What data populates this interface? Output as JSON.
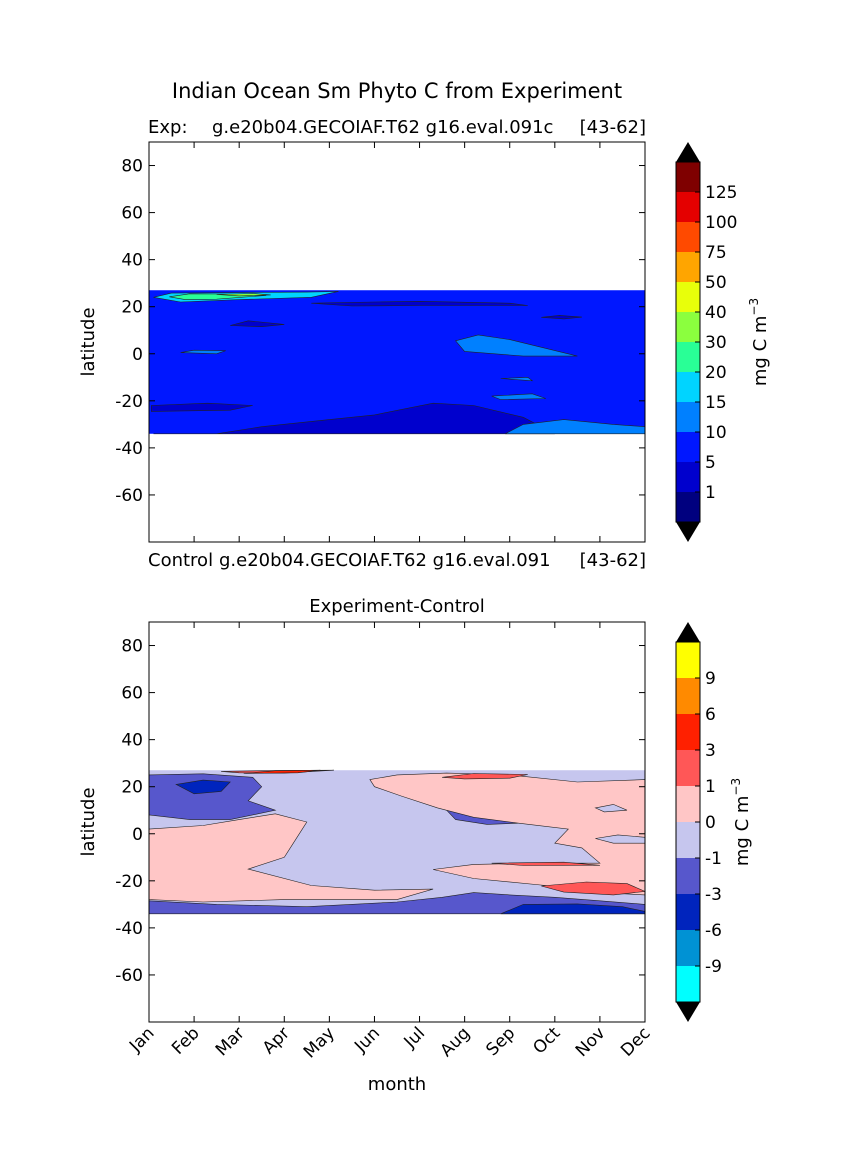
{
  "figure": {
    "title": "Indian Ocean Sm Phyto C from Experiment",
    "exp_label": "Exp:",
    "exp_run": "g.e20b04.GECOIAF.T62 g16.eval.091c",
    "exp_years": "[43-62]",
    "control_label": "Control",
    "control_run": "g.e20b04.GECOIAF.T62 g16.eval.091",
    "control_years": "[43-62]",
    "diff_title": "Experiment-Control",
    "ylabel": "latitude",
    "xlabel": "month",
    "colorbar_units": "mg C m",
    "colorbar_units_sup": "−3"
  },
  "chart_data": [
    {
      "type": "heatmap",
      "name": "experiment",
      "title": "Indian Ocean Sm Phyto C from Experiment",
      "ylabel": "latitude",
      "ylim": [
        -80,
        90
      ],
      "yticks": [
        80,
        60,
        40,
        20,
        0,
        -20,
        -40,
        -60
      ],
      "data_lat_range": [
        -34,
        27
      ],
      "colorbar": {
        "units": "mg C m^-3",
        "levels": [
          1,
          5,
          10,
          15,
          20,
          30,
          40,
          50,
          75,
          100,
          125
        ],
        "colors": [
          "#00007f",
          "#0000cd",
          "#0017ff",
          "#0080ff",
          "#00d4ff",
          "#29ff96",
          "#8bff3e",
          "#e8ff0a",
          "#ffa500",
          "#ff4a00",
          "#e40000",
          "#7f0000"
        ],
        "extend": "both"
      },
      "background_level_index": 2,
      "regions": [
        {
          "level_index": 1,
          "points": [
            [
              0.1,
              -34
            ],
            [
              1.5,
              -34
            ],
            [
              2.5,
              -31
            ],
            [
              4,
              -28
            ],
            [
              5,
              -26
            ],
            [
              6.3,
              -21
            ],
            [
              7.2,
              -22
            ],
            [
              8.3,
              -27
            ],
            [
              9,
              -34
            ]
          ]
        },
        {
          "level_index": 1,
          "points": [
            [
              0.05,
              -22
            ],
            [
              1.3,
              -21
            ],
            [
              2.3,
              -22
            ],
            [
              1.8,
              -24
            ],
            [
              0.05,
              -24.5
            ]
          ]
        },
        {
          "level_index": 1,
          "points": [
            [
              1.8,
              12
            ],
            [
              2.5,
              11.5
            ],
            [
              3,
              12.5
            ],
            [
              2.2,
              14
            ]
          ]
        },
        {
          "level_index": 1,
          "points": [
            [
              3.6,
              21.5
            ],
            [
              5,
              22
            ],
            [
              6,
              22.3
            ],
            [
              8,
              21.5
            ],
            [
              8.4,
              20.5
            ],
            [
              6,
              20.5
            ],
            [
              4.5,
              20.3
            ]
          ]
        },
        {
          "level_index": 1,
          "points": [
            [
              8.7,
              15.5
            ],
            [
              9.2,
              14.8
            ],
            [
              9.6,
              15.6
            ],
            [
              9.1,
              16.3
            ]
          ]
        },
        {
          "level_index": 3,
          "points": [
            [
              0.7,
              0.5
            ],
            [
              1,
              1.5
            ],
            [
              1.7,
              1.3
            ],
            [
              1.5,
              0
            ]
          ]
        },
        {
          "level_index": 3,
          "points": [
            [
              6.8,
              5.5
            ],
            [
              7.3,
              8
            ],
            [
              8,
              6
            ],
            [
              9.5,
              -1
            ],
            [
              8.3,
              -1
            ],
            [
              7,
              1
            ]
          ]
        },
        {
          "level_index": 3,
          "points": [
            [
              7.6,
              -18
            ],
            [
              8.5,
              -17
            ],
            [
              8.8,
              -19
            ],
            [
              7.8,
              -19.5
            ]
          ]
        },
        {
          "level_index": 3,
          "points": [
            [
              7.8,
              -10.5
            ],
            [
              8.4,
              -10
            ],
            [
              8.5,
              -11.5
            ]
          ]
        },
        {
          "level_index": 3,
          "points": [
            [
              7.9,
              -34
            ],
            [
              8.3,
              -30
            ],
            [
              9.2,
              -28
            ],
            [
              10.3,
              -30
            ],
            [
              11,
              -31
            ],
            [
              11,
              -34
            ]
          ]
        },
        {
          "level_index": 4,
          "points": [
            [
              0.1,
              24
            ],
            [
              0.5,
              25.8
            ],
            [
              2,
              26
            ],
            [
              3.5,
              26.2
            ],
            [
              4.2,
              26.5
            ],
            [
              3.6,
              24
            ],
            [
              2,
              23
            ],
            [
              0.7,
              22
            ]
          ]
        },
        {
          "level_index": 5,
          "points": [
            [
              0.45,
              24.2
            ],
            [
              0.9,
              25.5
            ],
            [
              1.8,
              25.4
            ],
            [
              2.6,
              24.8
            ],
            [
              1.5,
              23.2
            ],
            [
              0.8,
              23
            ]
          ]
        },
        {
          "level_index": 6,
          "points": [
            [
              1.5,
              25.2
            ],
            [
              2.3,
              25.6
            ],
            [
              2.7,
              25
            ],
            [
              2,
              24.6
            ]
          ]
        }
      ]
    },
    {
      "type": "heatmap",
      "name": "experiment-control",
      "title": "Experiment-Control",
      "ylabel": "latitude",
      "xlabel": "month",
      "ylim": [
        -80,
        90
      ],
      "yticks": [
        80,
        60,
        40,
        20,
        0,
        -20,
        -40,
        -60
      ],
      "categories": [
        "Jan",
        "Feb",
        "Mar",
        "Apr",
        "May",
        "Jun",
        "Jul",
        "Aug",
        "Sep",
        "Oct",
        "Nov",
        "Dec"
      ],
      "data_lat_range": [
        -34,
        27
      ],
      "colorbar": {
        "units": "mg C m^-3",
        "levels": [
          -9,
          -6,
          -3,
          -1,
          0,
          1,
          3,
          6,
          9
        ],
        "colors": [
          "#00ffff",
          "#0092d4",
          "#0024bd",
          "#5757cc",
          "#c6c6ee",
          "#ffc6c6",
          "#ff5757",
          "#ff2000",
          "#ff8a00",
          "#ffff00"
        ],
        "extend": "both"
      },
      "background_level_index": 4,
      "regions": [
        {
          "level_index": 3,
          "points": [
            [
              0,
              25
            ],
            [
              1.2,
              25.5
            ],
            [
              2.3,
              24
            ],
            [
              2.5,
              20
            ],
            [
              2.2,
              14
            ],
            [
              2.8,
              10
            ],
            [
              1.8,
              6
            ],
            [
              0.9,
              6
            ],
            [
              0,
              8
            ]
          ]
        },
        {
          "level_index": 2,
          "points": [
            [
              0.6,
              21
            ],
            [
              1.2,
              22.8
            ],
            [
              1.8,
              22
            ],
            [
              1.6,
              18
            ],
            [
              1,
              17
            ]
          ]
        },
        {
          "level_index": 3,
          "points": [
            [
              6.6,
              10
            ],
            [
              7.5,
              11
            ],
            [
              8.3,
              10.5
            ],
            [
              8.2,
              4.5
            ],
            [
              7.5,
              4
            ],
            [
              6.8,
              6
            ]
          ]
        },
        {
          "level_index": 3,
          "points": [
            [
              0,
              -28.5
            ],
            [
              1.5,
              -30
            ],
            [
              3.5,
              -31
            ],
            [
              5.5,
              -29
            ],
            [
              6.5,
              -27
            ],
            [
              7.2,
              -25
            ],
            [
              8,
              -26
            ],
            [
              9,
              -27
            ],
            [
              10,
              -28.5
            ],
            [
              11,
              -30
            ],
            [
              11,
              -34
            ],
            [
              0,
              -34
            ]
          ]
        },
        {
          "level_index": 2,
          "points": [
            [
              7.8,
              -34
            ],
            [
              8.3,
              -30
            ],
            [
              9.5,
              -29.8
            ],
            [
              10.5,
              -31
            ],
            [
              11,
              -33
            ],
            [
              11,
              -34
            ]
          ]
        },
        {
          "level_index": 5,
          "points": [
            [
              0,
              2
            ],
            [
              1.2,
              3.5
            ],
            [
              2,
              6
            ],
            [
              2.8,
              8.5
            ],
            [
              3.5,
              5
            ],
            [
              3.2,
              -4
            ],
            [
              3,
              -10
            ],
            [
              2.2,
              -15
            ],
            [
              3.6,
              -22
            ],
            [
              5,
              -24
            ],
            [
              6.3,
              -23.5
            ],
            [
              5.5,
              -28
            ],
            [
              3,
              -28
            ],
            [
              1.2,
              -29
            ],
            [
              0,
              -28
            ]
          ]
        },
        {
          "level_index": 5,
          "points": [
            [
              4.9,
              23
            ],
            [
              5.5,
              25
            ],
            [
              6.6,
              25.8
            ],
            [
              8,
              25
            ],
            [
              9.5,
              22
            ],
            [
              11,
              23
            ],
            [
              11,
              -26
            ],
            [
              10,
              -25
            ],
            [
              8.8,
              -22
            ],
            [
              7.2,
              -19
            ],
            [
              6.3,
              -15.2
            ],
            [
              7.2,
              -13
            ],
            [
              8.5,
              -12.5
            ],
            [
              10,
              -12.5
            ],
            [
              9.6,
              -6
            ],
            [
              9,
              -4
            ],
            [
              9.3,
              2
            ],
            [
              8.2,
              4.5
            ],
            [
              7.2,
              7
            ],
            [
              6.4,
              11
            ],
            [
              5.6,
              16
            ],
            [
              5,
              20
            ]
          ]
        },
        {
          "level_index": 6,
          "points": [
            [
              6.5,
              24
            ],
            [
              7.2,
              25.6
            ],
            [
              8.4,
              25.2
            ],
            [
              8,
              23.6
            ],
            [
              7,
              23.3
            ]
          ]
        },
        {
          "level_index": 6,
          "points": [
            [
              1.6,
              26.5
            ],
            [
              2.8,
              26.9
            ],
            [
              4.1,
              27
            ],
            [
              3,
              25.8
            ],
            [
              2,
              25.9
            ]
          ]
        },
        {
          "level_index": 6,
          "points": [
            [
              7.6,
              -12.5
            ],
            [
              9.2,
              -12.1
            ],
            [
              10,
              -13.4
            ],
            [
              8.3,
              -13.5
            ]
          ]
        },
        {
          "level_index": 6,
          "points": [
            [
              8.7,
              -22.2
            ],
            [
              9.7,
              -20.5
            ],
            [
              10.6,
              -21.2
            ],
            [
              11,
              -24.5
            ],
            [
              10.3,
              -26
            ],
            [
              9.2,
              -24.8
            ]
          ]
        },
        {
          "level_index": 7,
          "points": [
            [
              2.1,
              25.6
            ],
            [
              2.8,
              26.8
            ],
            [
              3.8,
              27
            ],
            [
              3.3,
              25.9
            ]
          ]
        },
        {
          "level_index": 4,
          "points": [
            [
              9.9,
              11
            ],
            [
              10.3,
              12.5
            ],
            [
              10.6,
              10
            ],
            [
              10.1,
              9.3
            ]
          ]
        },
        {
          "level_index": 4,
          "points": [
            [
              9.9,
              -2
            ],
            [
              10.4,
              -0.5
            ],
            [
              11,
              -1.5
            ],
            [
              11,
              -4
            ],
            [
              10.3,
              -4
            ]
          ]
        }
      ]
    }
  ],
  "months": [
    "Jan",
    "Feb",
    "Mar",
    "Apr",
    "May",
    "Jun",
    "Jul",
    "Aug",
    "Sep",
    "Oct",
    "Nov",
    "Dec"
  ]
}
